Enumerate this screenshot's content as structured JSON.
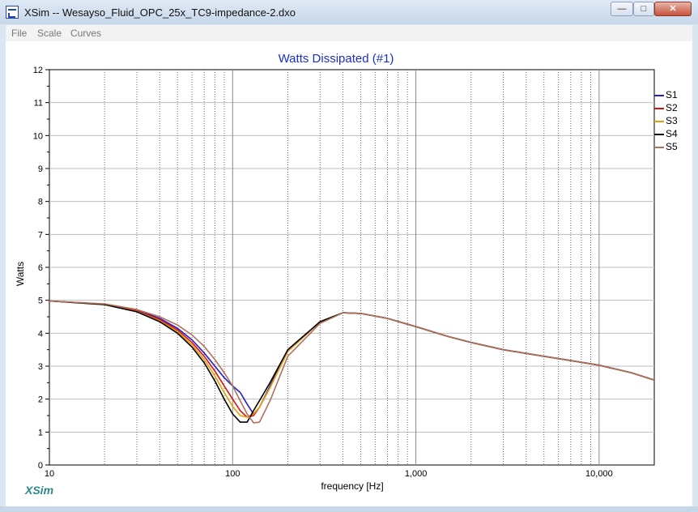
{
  "window": {
    "title": "XSim -- Wesayso_Fluid_OPC_25x_TC9-impedance-2.dxo",
    "controls": {
      "minimize": "—",
      "maximize": "□",
      "close": "✕"
    }
  },
  "menu": [
    "File",
    "Scale",
    "Curves"
  ],
  "brand": "XSim",
  "chart_data": {
    "type": "line",
    "title": "Watts Dissipated (#1)",
    "xlabel": "frequency [Hz]",
    "ylabel": "Watts",
    "xscale": "log",
    "xlim": [
      10,
      20000
    ],
    "ylim": [
      0,
      12
    ],
    "grid": true,
    "legend_position": "right",
    "x_tick_labels": [
      "10",
      "100",
      "1,000",
      "10,000"
    ],
    "x_tick_values": [
      10,
      100,
      1000,
      10000
    ],
    "y_ticks": [
      "0",
      "1",
      "2",
      "3",
      "4",
      "5",
      "6",
      "7",
      "8",
      "9",
      "10",
      "11",
      "12"
    ],
    "series": [
      {
        "name": "S1",
        "color": "#1f1fcc",
        "points": [
          [
            10,
            4.98
          ],
          [
            20,
            4.88
          ],
          [
            30,
            4.7
          ],
          [
            40,
            4.45
          ],
          [
            50,
            4.15
          ],
          [
            60,
            3.8
          ],
          [
            70,
            3.4
          ],
          [
            80,
            3.0
          ],
          [
            90,
            2.65
          ],
          [
            100,
            2.4
          ],
          [
            110,
            2.2
          ],
          [
            120,
            1.85
          ],
          [
            130,
            1.55
          ],
          [
            140,
            1.75
          ],
          [
            160,
            2.4
          ],
          [
            200,
            3.5
          ],
          [
            300,
            4.35
          ],
          [
            400,
            4.62
          ],
          [
            500,
            4.6
          ],
          [
            700,
            4.45
          ],
          [
            1000,
            4.2
          ],
          [
            1500,
            3.9
          ],
          [
            2000,
            3.72
          ],
          [
            3000,
            3.5
          ],
          [
            5000,
            3.3
          ],
          [
            7000,
            3.17
          ],
          [
            10000,
            3.03
          ],
          [
            15000,
            2.8
          ],
          [
            20000,
            2.58
          ]
        ]
      },
      {
        "name": "S2",
        "color": "#e01010",
        "points": [
          [
            10,
            4.98
          ],
          [
            20,
            4.88
          ],
          [
            30,
            4.68
          ],
          [
            40,
            4.42
          ],
          [
            50,
            4.1
          ],
          [
            60,
            3.72
          ],
          [
            70,
            3.3
          ],
          [
            80,
            2.85
          ],
          [
            90,
            2.4
          ],
          [
            100,
            2.0
          ],
          [
            110,
            1.65
          ],
          [
            120,
            1.45
          ],
          [
            130,
            1.5
          ],
          [
            140,
            1.75
          ],
          [
            160,
            2.35
          ],
          [
            200,
            3.45
          ],
          [
            300,
            4.35
          ],
          [
            400,
            4.62
          ],
          [
            500,
            4.6
          ],
          [
            700,
            4.45
          ],
          [
            1000,
            4.2
          ],
          [
            1500,
            3.9
          ],
          [
            2000,
            3.72
          ],
          [
            3000,
            3.5
          ],
          [
            5000,
            3.3
          ],
          [
            7000,
            3.17
          ],
          [
            10000,
            3.03
          ],
          [
            15000,
            2.8
          ],
          [
            20000,
            2.58
          ]
        ]
      },
      {
        "name": "S3",
        "color": "#e0a000",
        "points": [
          [
            10,
            4.98
          ],
          [
            20,
            4.87
          ],
          [
            30,
            4.66
          ],
          [
            40,
            4.38
          ],
          [
            50,
            4.05
          ],
          [
            60,
            3.65
          ],
          [
            70,
            3.2
          ],
          [
            80,
            2.7
          ],
          [
            90,
            2.2
          ],
          [
            100,
            1.78
          ],
          [
            110,
            1.5
          ],
          [
            120,
            1.45
          ],
          [
            130,
            1.55
          ],
          [
            140,
            1.75
          ],
          [
            160,
            2.35
          ],
          [
            200,
            3.45
          ],
          [
            300,
            4.35
          ],
          [
            400,
            4.62
          ],
          [
            500,
            4.6
          ],
          [
            700,
            4.45
          ],
          [
            1000,
            4.2
          ],
          [
            1500,
            3.9
          ],
          [
            2000,
            3.72
          ],
          [
            3000,
            3.5
          ],
          [
            5000,
            3.3
          ],
          [
            7000,
            3.17
          ],
          [
            10000,
            3.03
          ],
          [
            15000,
            2.8
          ],
          [
            20000,
            2.58
          ]
        ]
      },
      {
        "name": "S4",
        "color": "#000000",
        "points": [
          [
            10,
            4.98
          ],
          [
            20,
            4.87
          ],
          [
            30,
            4.65
          ],
          [
            40,
            4.35
          ],
          [
            50,
            4.0
          ],
          [
            60,
            3.58
          ],
          [
            70,
            3.1
          ],
          [
            80,
            2.55
          ],
          [
            90,
            2.0
          ],
          [
            100,
            1.55
          ],
          [
            110,
            1.3
          ],
          [
            120,
            1.3
          ],
          [
            130,
            1.65
          ],
          [
            140,
            1.95
          ],
          [
            160,
            2.5
          ],
          [
            200,
            3.5
          ],
          [
            300,
            4.35
          ],
          [
            400,
            4.62
          ],
          [
            500,
            4.6
          ],
          [
            700,
            4.45
          ],
          [
            1000,
            4.2
          ],
          [
            1500,
            3.9
          ],
          [
            2000,
            3.72
          ],
          [
            3000,
            3.5
          ],
          [
            5000,
            3.3
          ],
          [
            7000,
            3.17
          ],
          [
            10000,
            3.03
          ],
          [
            15000,
            2.8
          ],
          [
            20000,
            2.58
          ]
        ]
      },
      {
        "name": "S5",
        "color": "#b07060",
        "points": [
          [
            10,
            4.98
          ],
          [
            20,
            4.89
          ],
          [
            30,
            4.72
          ],
          [
            40,
            4.5
          ],
          [
            50,
            4.25
          ],
          [
            60,
            3.95
          ],
          [
            70,
            3.6
          ],
          [
            80,
            3.2
          ],
          [
            90,
            2.8
          ],
          [
            100,
            2.4
          ],
          [
            110,
            1.95
          ],
          [
            120,
            1.55
          ],
          [
            130,
            1.28
          ],
          [
            140,
            1.3
          ],
          [
            160,
            1.95
          ],
          [
            200,
            3.3
          ],
          [
            300,
            4.3
          ],
          [
            400,
            4.62
          ],
          [
            500,
            4.6
          ],
          [
            700,
            4.45
          ],
          [
            1000,
            4.2
          ],
          [
            1500,
            3.9
          ],
          [
            2000,
            3.72
          ],
          [
            3000,
            3.5
          ],
          [
            5000,
            3.3
          ],
          [
            7000,
            3.17
          ],
          [
            10000,
            3.03
          ],
          [
            15000,
            2.8
          ],
          [
            20000,
            2.58
          ]
        ]
      }
    ]
  }
}
